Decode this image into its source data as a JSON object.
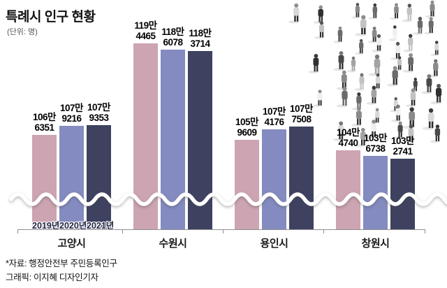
{
  "header": {
    "title": "특례시 인구 현황",
    "unit_label": "(단위: 명)"
  },
  "chart_data": {
    "type": "bar",
    "title": "특례시 인구 현황",
    "unit": "명",
    "categories": [
      "고양시",
      "수원시",
      "용인시",
      "창원시"
    ],
    "series": [
      {
        "name": "2019년",
        "color": "#cda4b2",
        "values": [
          1066351,
          1194465,
          1059609,
          1044740
        ],
        "labels": [
          [
            "106만",
            "6351"
          ],
          [
            "119만",
            "4465"
          ],
          [
            "105만",
            "9609"
          ],
          [
            "104만",
            "4740"
          ]
        ]
      },
      {
        "name": "2020년",
        "color": "#848bc0",
        "values": [
          1079216,
          1186078,
          1074176,
          1036738
        ],
        "labels": [
          [
            "107만",
            "9216"
          ],
          [
            "118만",
            "6078"
          ],
          [
            "107만",
            "4176"
          ],
          [
            "103만",
            "6738"
          ]
        ]
      },
      {
        "name": "2021년",
        "color": "#3e4260",
        "values": [
          1079353,
          1183714,
          1077508,
          1032741
        ],
        "labels": [
          [
            "107만",
            "9353"
          ],
          [
            "118만",
            "3714"
          ],
          [
            "107만",
            "7508"
          ],
          [
            "103만",
            "2741"
          ]
        ]
      }
    ],
    "year_labels": [
      "2019년",
      "2020년",
      "2021년"
    ],
    "axis_break": true,
    "legend_position": "none",
    "grid": false,
    "ylim_note": "broken axis: bars truncated, white wave marks break"
  },
  "footer": {
    "source": "*자료: 행정안전부 주민등록인구",
    "credit": "그래픽: 이지혜 디자인기자"
  },
  "colors": {
    "bar_2019": "#cda4b2",
    "bar_2020": "#848bc0",
    "bar_2021": "#3e4260",
    "axis": "#8f8f8f",
    "wave": "#ffffff"
  },
  "icons": {
    "crowd_illustration": "crowd-of-people-walking"
  }
}
